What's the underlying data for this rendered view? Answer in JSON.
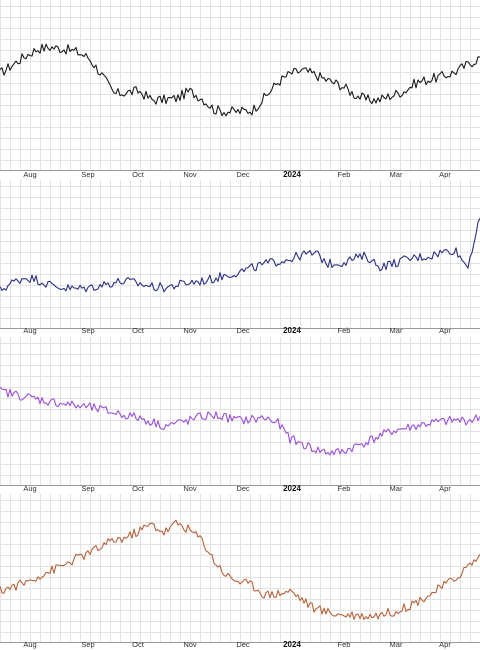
{
  "chart_data": [
    {
      "type": "line",
      "series": [
        {
          "color": "#1a1a1a",
          "y": [
            0.62,
            0.68,
            0.74,
            0.79,
            0.8,
            0.79,
            0.77,
            0.73,
            0.62,
            0.48,
            0.49,
            0.5,
            0.44,
            0.44,
            0.45,
            0.5,
            0.45,
            0.37,
            0.36,
            0.36,
            0.37,
            0.46,
            0.56,
            0.62,
            0.64,
            0.61,
            0.57,
            0.54,
            0.48,
            0.44,
            0.44,
            0.47,
            0.5,
            0.56,
            0.58,
            0.6,
            0.63,
            0.68,
            0.73
          ]
        }
      ],
      "x_tick_labels": [
        "Aug",
        "Sep",
        "Oct",
        "Nov",
        "Dec",
        "2024",
        "Feb",
        "Mar",
        "Apr"
      ],
      "x_tick_bold": [
        false,
        false,
        false,
        false,
        false,
        true,
        false,
        false,
        false
      ],
      "grid": true
    },
    {
      "type": "line",
      "series": [
        {
          "color": "#2b2f80",
          "y": [
            0.24,
            0.3,
            0.34,
            0.32,
            0.28,
            0.26,
            0.25,
            0.26,
            0.28,
            0.3,
            0.31,
            0.29,
            0.27,
            0.26,
            0.28,
            0.3,
            0.31,
            0.33,
            0.36,
            0.38,
            0.41,
            0.44,
            0.46,
            0.48,
            0.51,
            0.52,
            0.44,
            0.45,
            0.48,
            0.5,
            0.42,
            0.44,
            0.47,
            0.49,
            0.5,
            0.53,
            0.55,
            0.42,
            0.78
          ]
        }
      ],
      "x_tick_labels": [
        "Aug",
        "Sep",
        "Oct",
        "Nov",
        "Dec",
        "2024",
        "Feb",
        "Mar",
        "Apr"
      ],
      "x_tick_bold": [
        false,
        false,
        false,
        false,
        false,
        true,
        false,
        false,
        false
      ],
      "grid": true
    },
    {
      "type": "line",
      "series": [
        {
          "color": "#9a4fd3",
          "y": [
            0.66,
            0.64,
            0.62,
            0.6,
            0.58,
            0.57,
            0.55,
            0.54,
            0.52,
            0.5,
            0.48,
            0.46,
            0.43,
            0.4,
            0.42,
            0.44,
            0.47,
            0.48,
            0.46,
            0.44,
            0.45,
            0.46,
            0.42,
            0.3,
            0.26,
            0.22,
            0.2,
            0.2,
            0.24,
            0.28,
            0.32,
            0.36,
            0.38,
            0.4,
            0.42,
            0.43,
            0.44,
            0.44,
            0.46
          ]
        }
      ],
      "x_tick_labels": [
        "Aug",
        "Sep",
        "Oct",
        "Nov",
        "Dec",
        "2024",
        "Feb",
        "Mar",
        "Apr"
      ],
      "x_tick_bold": [
        false,
        false,
        false,
        false,
        false,
        true,
        false,
        false,
        false
      ],
      "grid": true
    },
    {
      "type": "line",
      "series": [
        {
          "color": "#b5633a",
          "y": [
            0.34,
            0.37,
            0.4,
            0.45,
            0.49,
            0.53,
            0.58,
            0.62,
            0.67,
            0.72,
            0.74,
            0.79,
            0.84,
            0.78,
            0.85,
            0.8,
            0.72,
            0.56,
            0.45,
            0.41,
            0.38,
            0.31,
            0.32,
            0.34,
            0.27,
            0.2,
            0.18,
            0.16,
            0.16,
            0.15,
            0.16,
            0.18,
            0.21,
            0.26,
            0.31,
            0.37,
            0.43,
            0.52,
            0.6
          ]
        }
      ],
      "x_tick_labels": [
        "Aug",
        "Sep",
        "Oct",
        "Nov",
        "Dec",
        "2024",
        "Feb",
        "Mar",
        "Apr"
      ],
      "x_tick_bold": [
        false,
        false,
        false,
        false,
        false,
        true,
        false,
        false,
        false
      ],
      "grid": true
    }
  ]
}
